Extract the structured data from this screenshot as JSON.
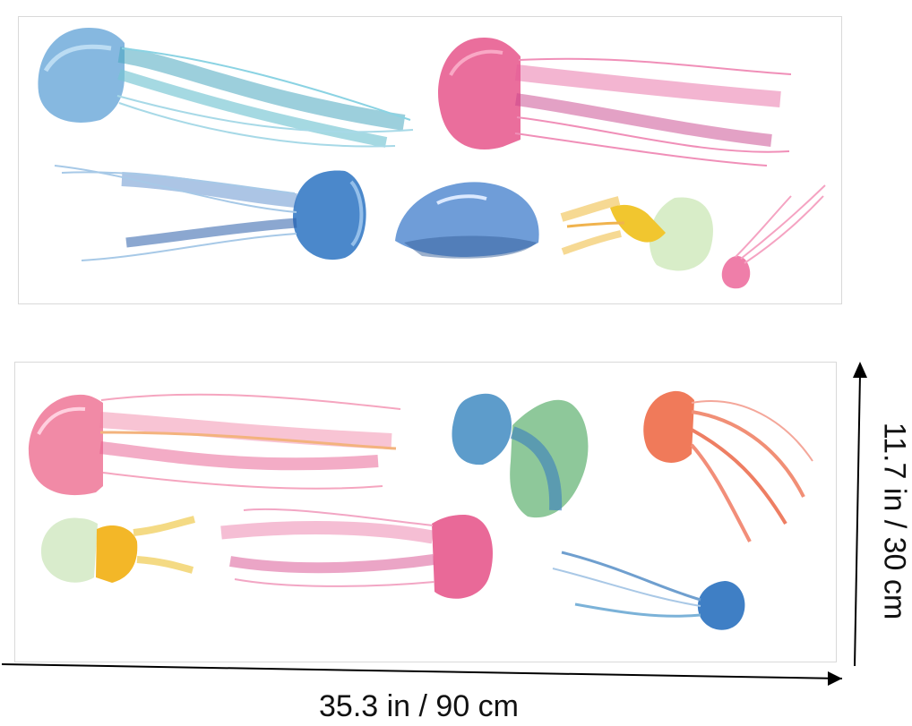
{
  "dimensions": {
    "width_label": "35.3 in / 90 cm",
    "height_label": "11.7 in / 30 cm"
  },
  "colors": {
    "blue": "#4f86c6",
    "teal": "#6fc4d6",
    "pink": "#e85a95",
    "coral": "#f07a5a",
    "yellow": "#f2c53a",
    "green": "#5aa88a"
  },
  "sheets": [
    {
      "name": "top-sheet",
      "items": [
        "blue-jellyfish",
        "pink-jellyfish",
        "blue-jellyfish-reversed",
        "blue-bell",
        "yellow-jellyfish",
        "small-pink-jellyfish"
      ]
    },
    {
      "name": "bottom-sheet",
      "items": [
        "pink-jellyfish-large",
        "green-jellyfish",
        "coral-jellyfish",
        "yellow-jellyfish-small",
        "magenta-jellyfish",
        "small-blue-jellyfish"
      ]
    }
  ]
}
